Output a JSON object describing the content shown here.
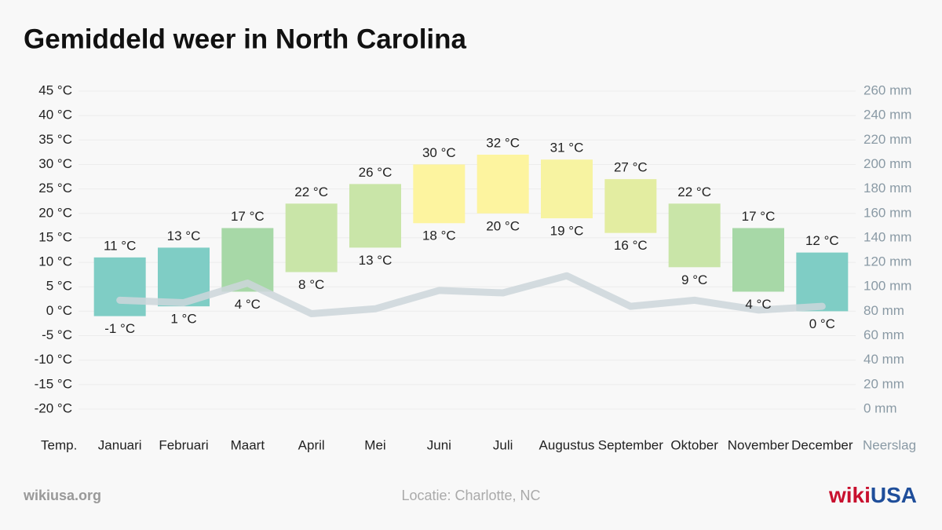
{
  "chart_data": {
    "type": "range-bar",
    "title": "Gemiddeld weer in North Carolina",
    "y_label": "Temp.",
    "y2_label": "Neerslag",
    "source": "wikiusa.org",
    "note": "Locatie: Charlotte, NC",
    "logo": [
      "wiki",
      "USA"
    ],
    "categories": [
      "Januari",
      "Februari",
      "Maart",
      "April",
      "Mei",
      "Juni",
      "Juli",
      "Augustus",
      "September",
      "Oktober",
      "November",
      "December"
    ],
    "high": {
      "values": [
        11,
        13,
        17,
        22,
        26,
        30,
        32,
        31,
        27,
        22,
        17,
        12
      ],
      "value_labels": [
        "11 °C",
        "13 °C",
        "17 °C",
        "22 °C",
        "26 °C",
        "30 °C",
        "32 °C",
        "31 °C",
        "27 °C",
        "22 °C",
        "17 °C",
        "12 °C"
      ]
    },
    "low": {
      "values": [
        -1,
        1,
        4,
        8,
        13,
        18,
        20,
        19,
        16,
        9,
        4,
        0
      ],
      "value_labels": [
        "-1 °C",
        "1 °C",
        "4 °C",
        "8 °C",
        "13 °C",
        "18 °C",
        "20 °C",
        "19 °C",
        "16 °C",
        "9 °C",
        "4 °C",
        "0 °C"
      ]
    },
    "colors": [
      "#7fcdc5",
      "#7fcdc5",
      "#a7d8a7",
      "#c9e5a8",
      "#c9e5a8",
      "#fdf49f",
      "#fdf49f",
      "#f7f3a1",
      "#e3eda1",
      "#c9e5a8",
      "#a7d8a7",
      "#7fcdc5"
    ],
    "precipitation": {
      "axis": "y2",
      "color": "#cdd6da",
      "values": [
        89,
        87,
        103,
        78,
        82,
        97,
        95,
        109,
        84,
        89,
        81,
        84
      ]
    },
    "ylim": [
      -20,
      45
    ],
    "yticks": [
      {
        "value": -20,
        "label": "-20 °C"
      },
      {
        "value": -15,
        "label": "-15 °C"
      },
      {
        "value": -10,
        "label": "-10 °C"
      },
      {
        "value": -5,
        "label": "-5 °C"
      },
      {
        "value": 0,
        "label": "0 °C"
      },
      {
        "value": 5,
        "label": "5 °C"
      },
      {
        "value": 10,
        "label": "10 °C"
      },
      {
        "value": 15,
        "label": "15 °C"
      },
      {
        "value": 20,
        "label": "20 °C"
      },
      {
        "value": 25,
        "label": "25 °C"
      },
      {
        "value": 30,
        "label": "30 °C"
      },
      {
        "value": 35,
        "label": "35 °C"
      },
      {
        "value": 40,
        "label": "40 °C"
      },
      {
        "value": 45,
        "label": "45 °C"
      }
    ],
    "y2lim": [
      0,
      260
    ],
    "y2ticks": [
      {
        "value": 0,
        "label": "0 mm"
      },
      {
        "value": 20,
        "label": "20 mm"
      },
      {
        "value": 40,
        "label": "40 mm"
      },
      {
        "value": 60,
        "label": "60 mm"
      },
      {
        "value": 80,
        "label": "80 mm"
      },
      {
        "value": 100,
        "label": "100 mm"
      },
      {
        "value": 120,
        "label": "120 mm"
      },
      {
        "value": 140,
        "label": "140 mm"
      },
      {
        "value": 160,
        "label": "160 mm"
      },
      {
        "value": 180,
        "label": "180 mm"
      },
      {
        "value": 200,
        "label": "200 mm"
      },
      {
        "value": 220,
        "label": "220 mm"
      },
      {
        "value": 240,
        "label": "240 mm"
      },
      {
        "value": 260,
        "label": "260 mm"
      }
    ],
    "grid": true
  }
}
